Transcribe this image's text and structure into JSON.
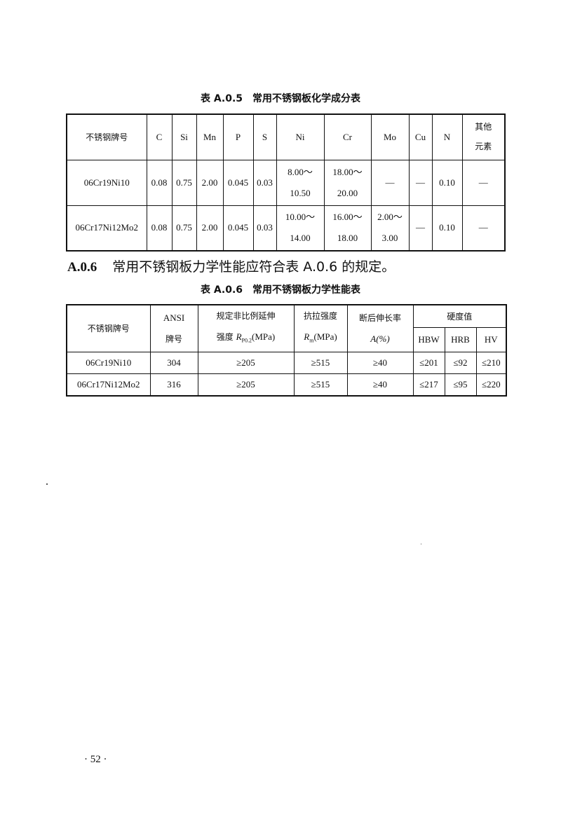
{
  "table_a05": {
    "caption": "表 A.0.5　常用不锈钢板化学成分表",
    "headers": [
      "不锈钢牌号",
      "C",
      "Si",
      "Mn",
      "P",
      "S",
      "Ni",
      "Cr",
      "Mo",
      "Cu",
      "N",
      "其他元素"
    ],
    "header_other_line1": "其他",
    "header_other_line2": "元素",
    "rows": [
      {
        "grade": "06Cr19Ni10",
        "C": "0.08",
        "Si": "0.75",
        "Mn": "2.00",
        "P": "0.045",
        "S": "0.03",
        "Ni_1": "8.00～",
        "Ni_2": "10.50",
        "Cr_1": "18.00～",
        "Cr_2": "20.00",
        "Mo_1": "—",
        "Mo_2": "",
        "Cu": "—",
        "N": "0.10",
        "other": "—"
      },
      {
        "grade": "06Cr17Ni12Mo2",
        "C": "0.08",
        "Si": "0.75",
        "Mn": "2.00",
        "P": "0.045",
        "S": "0.03",
        "Ni_1": "10.00～",
        "Ni_2": "14.00",
        "Cr_1": "16.00～",
        "Cr_2": "18.00",
        "Mo_1": "2.00～",
        "Mo_2": "3.00",
        "Cu": "—",
        "N": "0.10",
        "other": "—"
      }
    ]
  },
  "paragraph": {
    "number": "A.0.6",
    "text": "常用不锈钢板力学性能应符合表 A.0.6 的规定。"
  },
  "table_a06": {
    "caption": "表 A.0.6　常用不锈钢板力学性能表",
    "headers": {
      "grade": "不锈钢牌号",
      "ansi_1": "ANSI",
      "ansi_2": "牌号",
      "yield_1": "规定非比例延伸",
      "yield_2_prefix": "强度 ",
      "yield_2_sym": "R",
      "yield_2_sub": "P0.2",
      "yield_2_unit": "(MPa)",
      "tensile_1": "抗拉强度",
      "tensile_sym": "R",
      "tensile_sub": "m",
      "tensile_unit": "(MPa)",
      "elong_1": "断后伸长率",
      "elong_2": "A(%)",
      "hardness": "硬度值",
      "hbw": "HBW",
      "hrb": "HRB",
      "hv": "HV"
    },
    "rows": [
      {
        "grade": "06Cr19Ni10",
        "ansi": "304",
        "yield": "≥205",
        "tensile": "≥515",
        "elong": "≥40",
        "hbw": "≤201",
        "hrb": "≤92",
        "hv": "≤210"
      },
      {
        "grade": "06Cr17Ni12Mo2",
        "ansi": "316",
        "yield": "≥205",
        "tensile": "≥515",
        "elong": "≥40",
        "hbw": "≤217",
        "hrb": "≤95",
        "hv": "≤220"
      }
    ]
  },
  "page_number": "· 52 ·"
}
